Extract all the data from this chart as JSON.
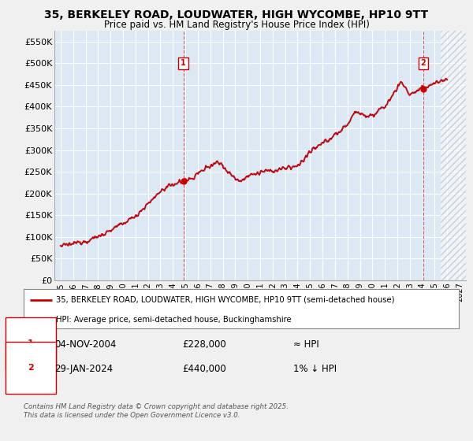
{
  "title_line1": "35, BERKELEY ROAD, LOUDWATER, HIGH WYCOMBE, HP10 9TT",
  "title_line2": "Price paid vs. HM Land Registry's House Price Index (HPI)",
  "ylim": [
    0,
    575000
  ],
  "yticks": [
    0,
    50000,
    100000,
    150000,
    200000,
    250000,
    300000,
    350000,
    400000,
    450000,
    500000,
    550000
  ],
  "ytick_labels": [
    "£0",
    "£50K",
    "£100K",
    "£150K",
    "£200K",
    "£250K",
    "£300K",
    "£350K",
    "£400K",
    "£450K",
    "£500K",
    "£550K"
  ],
  "xlim_start": 1994.5,
  "xlim_end": 2027.5,
  "sale1_x": 2004.84,
  "sale1_y": 228000,
  "sale1_label": "1",
  "sale2_x": 2024.08,
  "sale2_y": 440000,
  "sale2_label": "2",
  "line_color": "#cc0000",
  "hpi_color": "#88aacc",
  "plot_bg_color": "#dce9f5",
  "background_color": "#f0f0f0",
  "grid_color": "#ffffff",
  "future_x": 2025.5,
  "legend_label1": "35, BERKELEY ROAD, LOUDWATER, HIGH WYCOMBE, HP10 9TT (semi-detached house)",
  "legend_label2": "HPI: Average price, semi-detached house, Buckinghamshire",
  "annotation1_date": "04-NOV-2004",
  "annotation1_price": "£228,000",
  "annotation1_hpi": "≈ HPI",
  "annotation2_date": "29-JAN-2024",
  "annotation2_price": "£440,000",
  "annotation2_hpi": "1% ↓ HPI",
  "footer": "Contains HM Land Registry data © Crown copyright and database right 2025.\nThis data is licensed under the Open Government Licence v3.0.",
  "xticks": [
    1995,
    1996,
    1997,
    1998,
    1999,
    2000,
    2001,
    2002,
    2003,
    2004,
    2005,
    2006,
    2007,
    2008,
    2009,
    2010,
    2011,
    2012,
    2013,
    2014,
    2015,
    2016,
    2017,
    2018,
    2019,
    2020,
    2021,
    2022,
    2023,
    2024,
    2025,
    2026,
    2027
  ]
}
